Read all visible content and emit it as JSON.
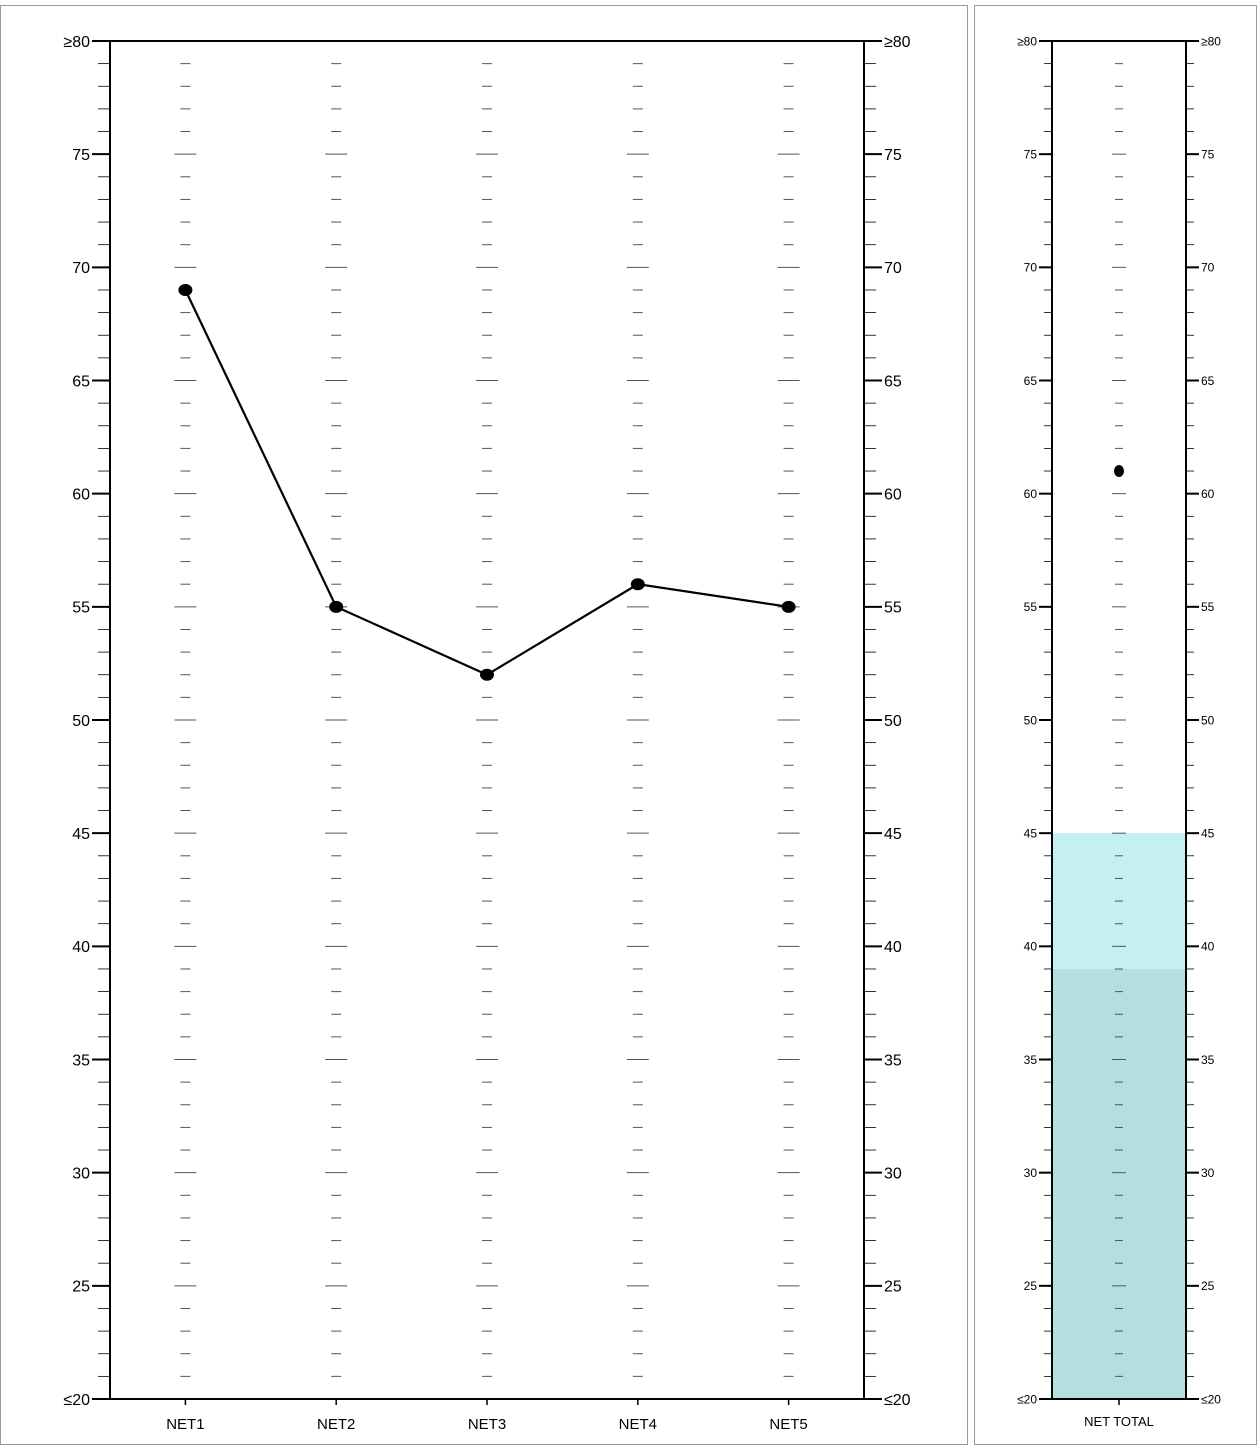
{
  "title": "",
  "chart_data": [
    {
      "type": "line",
      "categories": [
        "NET1",
        "NET2",
        "NET3",
        "NET4",
        "NET5"
      ],
      "series": [
        {
          "values": [
            69,
            55,
            52,
            56,
            55
          ]
        }
      ],
      "ylim": [
        20,
        80
      ],
      "y_major_ticks": [
        20,
        25,
        30,
        35,
        40,
        45,
        50,
        55,
        60,
        65,
        70,
        75,
        80
      ],
      "y_tick_labels": [
        "≤20",
        "25",
        "30",
        "35",
        "40",
        "45",
        "50",
        "55",
        "60",
        "65",
        "70",
        "75",
        "≥80"
      ],
      "y_axis_sides": "both",
      "y_minor_step": 1,
      "line_color": "#000000",
      "marker_color": "#000000"
    },
    {
      "type": "scatter",
      "categories": [
        "NET TOTAL"
      ],
      "values": [
        61
      ],
      "ylim": [
        20,
        80
      ],
      "y_major_ticks": [
        20,
        25,
        30,
        35,
        40,
        45,
        50,
        55,
        60,
        65,
        70,
        75,
        80
      ],
      "y_tick_labels": [
        "≤20",
        "25",
        "30",
        "35",
        "40",
        "45",
        "50",
        "55",
        "60",
        "65",
        "70",
        "75",
        "≥80"
      ],
      "y_axis_sides": "both",
      "y_minor_step": 1,
      "bands": [
        {
          "from": 20,
          "to": 39,
          "color": "#b5dede"
        },
        {
          "from": 39,
          "to": 45,
          "color": "#c5f0f1"
        }
      ],
      "marker_color": "#000000"
    }
  ]
}
